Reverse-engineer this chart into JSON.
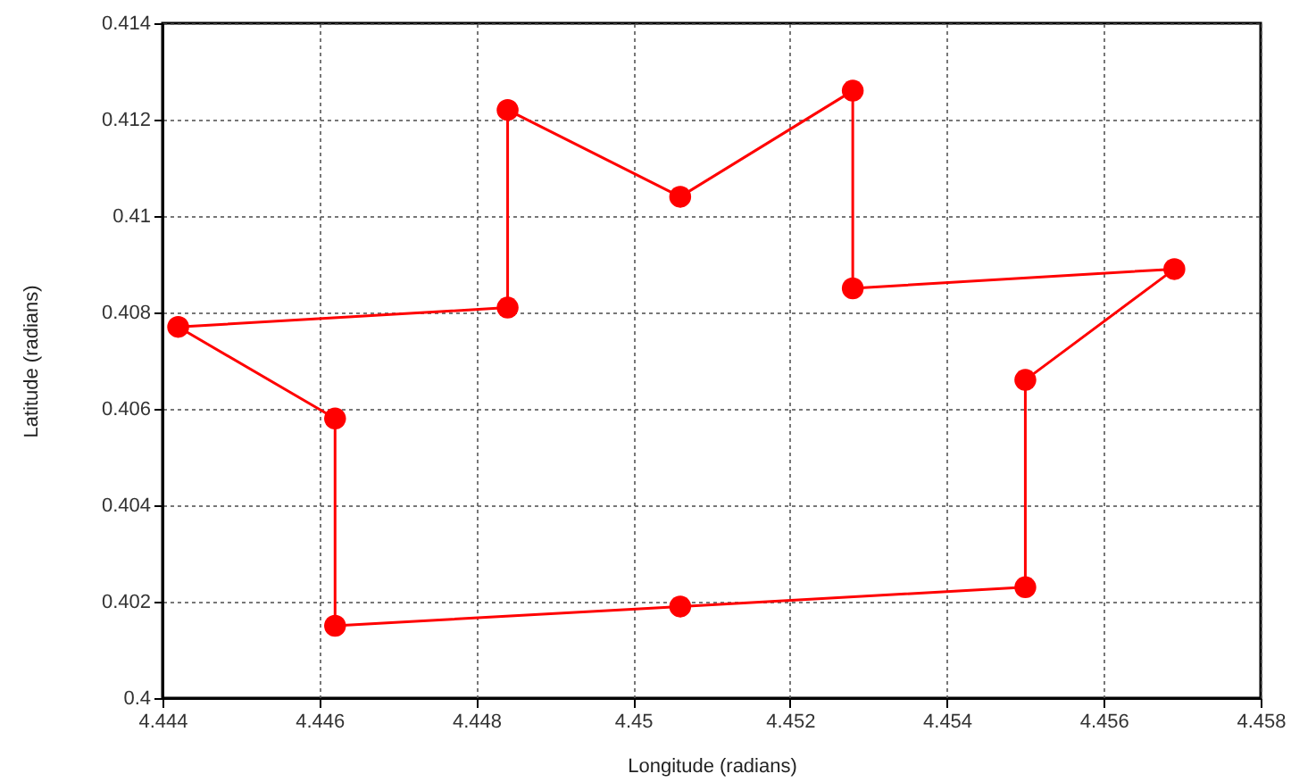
{
  "chart_data": {
    "type": "line",
    "xlabel": "Longitude (radians)",
    "ylabel": "Latitude (radians)",
    "x": [
      4.4442,
      4.4462,
      4.4462,
      4.4506,
      4.455,
      4.455,
      4.4569,
      4.4528,
      4.4528,
      4.4506,
      4.4484,
      4.4484
    ],
    "series": [
      {
        "color": "#ff0000",
        "values": [
          0.4077,
          0.4058,
          0.4015,
          0.4019,
          0.4023,
          0.4066,
          0.4089,
          0.4085,
          0.4126,
          0.4104,
          0.4122,
          0.4081
        ]
      },
      {
        "color": "#ff0000",
        "x": [
          4.4484,
          4.4442
        ],
        "values": [
          0.4081,
          0.4077
        ],
        "marker": "none"
      }
    ],
    "xlim": [
      4.444,
      4.458
    ],
    "ylim": [
      0.4,
      0.414
    ],
    "xticks": [
      4.444,
      4.446,
      4.448,
      4.45,
      4.452,
      4.454,
      4.456,
      4.458
    ],
    "yticks": [
      0.4,
      0.402,
      0.404,
      0.406,
      0.408,
      0.41,
      0.412,
      0.414
    ],
    "grid": true,
    "marker": "circle",
    "line_style": "solid"
  }
}
